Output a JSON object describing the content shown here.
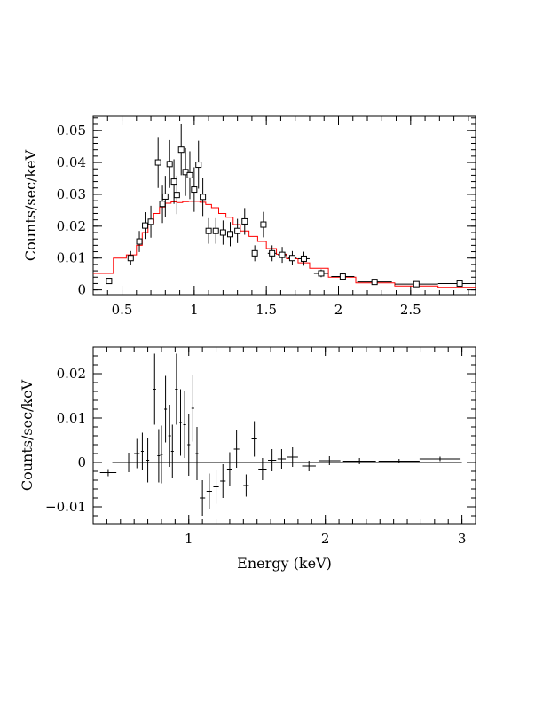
{
  "chart_data": [
    {
      "type": "scatter",
      "panel": "spectrum",
      "ylabel": "Counts/sec/keV",
      "xlabel": "",
      "xlim": [
        0.3,
        2.95
      ],
      "ylim": [
        -0.0015,
        0.0545
      ],
      "xticks": [
        {
          "v": 0.5,
          "label": "0.5"
        },
        {
          "v": 1,
          "label": "1"
        },
        {
          "v": 1.5,
          "label": "1.5"
        },
        {
          "v": 2,
          "label": "2"
        },
        {
          "v": 2.5,
          "label": "2.5"
        }
      ],
      "yticks": [
        {
          "v": 0,
          "label": "0"
        },
        {
          "v": 0.01,
          "label": "0.01"
        },
        {
          "v": 0.02,
          "label": "0.02"
        },
        {
          "v": 0.03,
          "label": "0.03"
        },
        {
          "v": 0.04,
          "label": "0.04"
        },
        {
          "v": 0.05,
          "label": "0.05"
        }
      ],
      "xminor": 0.1,
      "yminor": 0.002,
      "data_points": [
        {
          "x": 0.41,
          "y": 0.0028,
          "yerr": 0.0008,
          "xerr": 0.02
        },
        {
          "x": 0.56,
          "y": 0.01,
          "yerr": 0.0022,
          "xerr": 0.02
        },
        {
          "x": 0.62,
          "y": 0.0152,
          "yerr": 0.0033,
          "xerr": 0.02
        },
        {
          "x": 0.66,
          "y": 0.0202,
          "yerr": 0.0042,
          "xerr": 0.01
        },
        {
          "x": 0.7,
          "y": 0.0214,
          "yerr": 0.005,
          "xerr": 0.01
        },
        {
          "x": 0.75,
          "y": 0.04,
          "yerr": 0.008,
          "xerr": 0.01
        },
        {
          "x": 0.78,
          "y": 0.027,
          "yerr": 0.006,
          "xerr": 0.01
        },
        {
          "x": 0.8,
          "y": 0.0293,
          "yerr": 0.0065,
          "xerr": 0.01
        },
        {
          "x": 0.83,
          "y": 0.0395,
          "yerr": 0.0075,
          "xerr": 0.01
        },
        {
          "x": 0.86,
          "y": 0.034,
          "yerr": 0.007,
          "xerr": 0.01
        },
        {
          "x": 0.88,
          "y": 0.0298,
          "yerr": 0.006,
          "xerr": 0.01
        },
        {
          "x": 0.91,
          "y": 0.044,
          "yerr": 0.008,
          "xerr": 0.01
        },
        {
          "x": 0.94,
          "y": 0.037,
          "yerr": 0.0075,
          "xerr": 0.01
        },
        {
          "x": 0.97,
          "y": 0.036,
          "yerr": 0.0075,
          "xerr": 0.01
        },
        {
          "x": 1.0,
          "y": 0.0315,
          "yerr": 0.007,
          "xerr": 0.01
        },
        {
          "x": 1.03,
          "y": 0.0393,
          "yerr": 0.0075,
          "xerr": 0.01
        },
        {
          "x": 1.06,
          "y": 0.0292,
          "yerr": 0.006,
          "xerr": 0.01
        },
        {
          "x": 1.1,
          "y": 0.0185,
          "yerr": 0.004,
          "xerr": 0.02
        },
        {
          "x": 1.15,
          "y": 0.0185,
          "yerr": 0.004,
          "xerr": 0.02
        },
        {
          "x": 1.2,
          "y": 0.018,
          "yerr": 0.0038,
          "xerr": 0.02
        },
        {
          "x": 1.25,
          "y": 0.0175,
          "yerr": 0.0038,
          "xerr": 0.02
        },
        {
          "x": 1.3,
          "y": 0.0185,
          "yerr": 0.0038,
          "xerr": 0.02
        },
        {
          "x": 1.35,
          "y": 0.0215,
          "yerr": 0.0042,
          "xerr": 0.02
        },
        {
          "x": 1.42,
          "y": 0.0115,
          "yerr": 0.0025,
          "xerr": 0.02
        },
        {
          "x": 1.48,
          "y": 0.0205,
          "yerr": 0.004,
          "xerr": 0.02
        },
        {
          "x": 1.54,
          "y": 0.0115,
          "yerr": 0.0025,
          "xerr": 0.03
        },
        {
          "x": 1.61,
          "y": 0.011,
          "yerr": 0.0025,
          "xerr": 0.03
        },
        {
          "x": 1.68,
          "y": 0.01,
          "yerr": 0.0022,
          "xerr": 0.03
        },
        {
          "x": 1.76,
          "y": 0.0098,
          "yerr": 0.0022,
          "xerr": 0.04
        },
        {
          "x": 1.88,
          "y": 0.0052,
          "yerr": 0.0012,
          "xerr": 0.05
        },
        {
          "x": 2.03,
          "y": 0.0042,
          "yerr": 0.001,
          "xerr": 0.08
        },
        {
          "x": 2.25,
          "y": 0.0025,
          "yerr": 0.0007,
          "xerr": 0.12
        },
        {
          "x": 2.54,
          "y": 0.0018,
          "yerr": 0.0005,
          "xerr": 0.15
        },
        {
          "x": 2.84,
          "y": 0.002,
          "yerr": 0.0005,
          "xerr": 0.15
        }
      ],
      "model_steps": [
        {
          "x0": 0.3,
          "x1": 0.44,
          "y": 0.0052
        },
        {
          "x0": 0.44,
          "x1": 0.53,
          "y": 0.01
        },
        {
          "x0": 0.53,
          "x1": 0.6,
          "y": 0.011
        },
        {
          "x0": 0.6,
          "x1": 0.64,
          "y": 0.014
        },
        {
          "x0": 0.64,
          "x1": 0.68,
          "y": 0.018
        },
        {
          "x0": 0.68,
          "x1": 0.72,
          "y": 0.021
        },
        {
          "x0": 0.72,
          "x1": 0.76,
          "y": 0.024
        },
        {
          "x0": 0.76,
          "x1": 0.8,
          "y": 0.026
        },
        {
          "x0": 0.8,
          "x1": 0.84,
          "y": 0.0272
        },
        {
          "x0": 0.84,
          "x1": 0.88,
          "y": 0.0276
        },
        {
          "x0": 0.88,
          "x1": 0.92,
          "y": 0.0274
        },
        {
          "x0": 0.92,
          "x1": 0.96,
          "y": 0.0277
        },
        {
          "x0": 0.96,
          "x1": 1.0,
          "y": 0.0278
        },
        {
          "x0": 1.0,
          "x1": 1.04,
          "y": 0.0278
        },
        {
          "x0": 1.04,
          "x1": 1.08,
          "y": 0.0275
        },
        {
          "x0": 1.08,
          "x1": 1.12,
          "y": 0.0268
        },
        {
          "x0": 1.12,
          "x1": 1.17,
          "y": 0.0258
        },
        {
          "x0": 1.17,
          "x1": 1.22,
          "y": 0.024
        },
        {
          "x0": 1.22,
          "x1": 1.27,
          "y": 0.0228
        },
        {
          "x0": 1.27,
          "x1": 1.32,
          "y": 0.0205
        },
        {
          "x0": 1.32,
          "x1": 1.38,
          "y": 0.0185
        },
        {
          "x0": 1.38,
          "x1": 1.44,
          "y": 0.0168
        },
        {
          "x0": 1.44,
          "x1": 1.5,
          "y": 0.0152
        },
        {
          "x0": 1.5,
          "x1": 1.57,
          "y": 0.013
        },
        {
          "x0": 1.57,
          "x1": 1.64,
          "y": 0.0112
        },
        {
          "x0": 1.64,
          "x1": 1.72,
          "y": 0.0098
        },
        {
          "x0": 1.72,
          "x1": 1.8,
          "y": 0.0085
        },
        {
          "x0": 1.8,
          "x1": 1.93,
          "y": 0.0068
        },
        {
          "x0": 1.93,
          "x1": 2.12,
          "y": 0.004
        },
        {
          "x0": 2.12,
          "x1": 2.39,
          "y": 0.0022
        },
        {
          "x0": 2.39,
          "x1": 2.69,
          "y": 0.0012
        },
        {
          "x0": 2.69,
          "x1": 2.95,
          "y": 0.0008
        }
      ],
      "model_color": "#ff0000"
    },
    {
      "type": "scatter",
      "panel": "residuals",
      "ylabel": "Counts/sec/keV",
      "xlabel": "Energy (keV)",
      "xlim": [
        0.3,
        3.1
      ],
      "ylim": [
        -0.0138,
        0.026
      ],
      "xticks": [
        {
          "v": 1,
          "label": "1"
        },
        {
          "v": 2,
          "label": "2"
        },
        {
          "v": 3,
          "label": "3"
        }
      ],
      "yticks": [
        {
          "v": -0.01,
          "label": "−0.01"
        },
        {
          "v": 0,
          "label": "0"
        },
        {
          "v": 0.01,
          "label": "0.01"
        },
        {
          "v": 0.02,
          "label": "0.02"
        }
      ],
      "xminor": 0.1,
      "yminor": 0.002,
      "zero_line": [
        0.44,
        3.0
      ],
      "data_points": [
        {
          "x": 0.41,
          "y": -0.0023,
          "yerr": 0.0008,
          "xerr": 0.06
        },
        {
          "x": 0.56,
          "y": 0.0,
          "yerr": 0.0022,
          "xerr": 0.02
        },
        {
          "x": 0.62,
          "y": 0.002,
          "yerr": 0.0033,
          "xerr": 0.02
        },
        {
          "x": 0.66,
          "y": 0.0025,
          "yerr": 0.0042,
          "xerr": 0.01
        },
        {
          "x": 0.7,
          "y": 0.0005,
          "yerr": 0.005,
          "xerr": 0.01
        },
        {
          "x": 0.75,
          "y": 0.0165,
          "yerr": 0.008,
          "xerr": 0.01
        },
        {
          "x": 0.78,
          "y": 0.0015,
          "yerr": 0.006,
          "xerr": 0.01
        },
        {
          "x": 0.8,
          "y": 0.0018,
          "yerr": 0.0065,
          "xerr": 0.01
        },
        {
          "x": 0.83,
          "y": 0.012,
          "yerr": 0.0075,
          "xerr": 0.01
        },
        {
          "x": 0.86,
          "y": 0.006,
          "yerr": 0.007,
          "xerr": 0.01
        },
        {
          "x": 0.88,
          "y": 0.0025,
          "yerr": 0.006,
          "xerr": 0.01
        },
        {
          "x": 0.91,
          "y": 0.0165,
          "yerr": 0.008,
          "xerr": 0.01
        },
        {
          "x": 0.94,
          "y": 0.009,
          "yerr": 0.0075,
          "xerr": 0.01
        },
        {
          "x": 0.97,
          "y": 0.0085,
          "yerr": 0.0075,
          "xerr": 0.01
        },
        {
          "x": 1.0,
          "y": 0.004,
          "yerr": 0.007,
          "xerr": 0.01
        },
        {
          "x": 1.03,
          "y": 0.0122,
          "yerr": 0.0075,
          "xerr": 0.01
        },
        {
          "x": 1.06,
          "y": 0.002,
          "yerr": 0.006,
          "xerr": 0.01
        },
        {
          "x": 1.1,
          "y": -0.008,
          "yerr": 0.004,
          "xerr": 0.02
        },
        {
          "x": 1.15,
          "y": -0.0065,
          "yerr": 0.004,
          "xerr": 0.02
        },
        {
          "x": 1.2,
          "y": -0.0055,
          "yerr": 0.0038,
          "xerr": 0.02
        },
        {
          "x": 1.25,
          "y": -0.0042,
          "yerr": 0.0038,
          "xerr": 0.02
        },
        {
          "x": 1.3,
          "y": -0.0015,
          "yerr": 0.0038,
          "xerr": 0.02
        },
        {
          "x": 1.35,
          "y": 0.003,
          "yerr": 0.0042,
          "xerr": 0.02
        },
        {
          "x": 1.42,
          "y": -0.0052,
          "yerr": 0.0025,
          "xerr": 0.02
        },
        {
          "x": 1.48,
          "y": 0.0053,
          "yerr": 0.004,
          "xerr": 0.02
        },
        {
          "x": 1.54,
          "y": -0.0015,
          "yerr": 0.0025,
          "xerr": 0.03
        },
        {
          "x": 1.61,
          "y": 0.0005,
          "yerr": 0.0025,
          "xerr": 0.03
        },
        {
          "x": 1.68,
          "y": 0.0008,
          "yerr": 0.0022,
          "xerr": 0.03
        },
        {
          "x": 1.76,
          "y": 0.0012,
          "yerr": 0.0022,
          "xerr": 0.04
        },
        {
          "x": 1.88,
          "y": -0.0008,
          "yerr": 0.0012,
          "xerr": 0.05
        },
        {
          "x": 2.03,
          "y": 0.0004,
          "yerr": 0.001,
          "xerr": 0.08
        },
        {
          "x": 2.25,
          "y": 0.0003,
          "yerr": 0.0007,
          "xerr": 0.12
        },
        {
          "x": 2.54,
          "y": 0.0003,
          "yerr": 0.0005,
          "xerr": 0.15
        },
        {
          "x": 2.84,
          "y": 0.0008,
          "yerr": 0.0005,
          "xerr": 0.15
        }
      ]
    }
  ]
}
